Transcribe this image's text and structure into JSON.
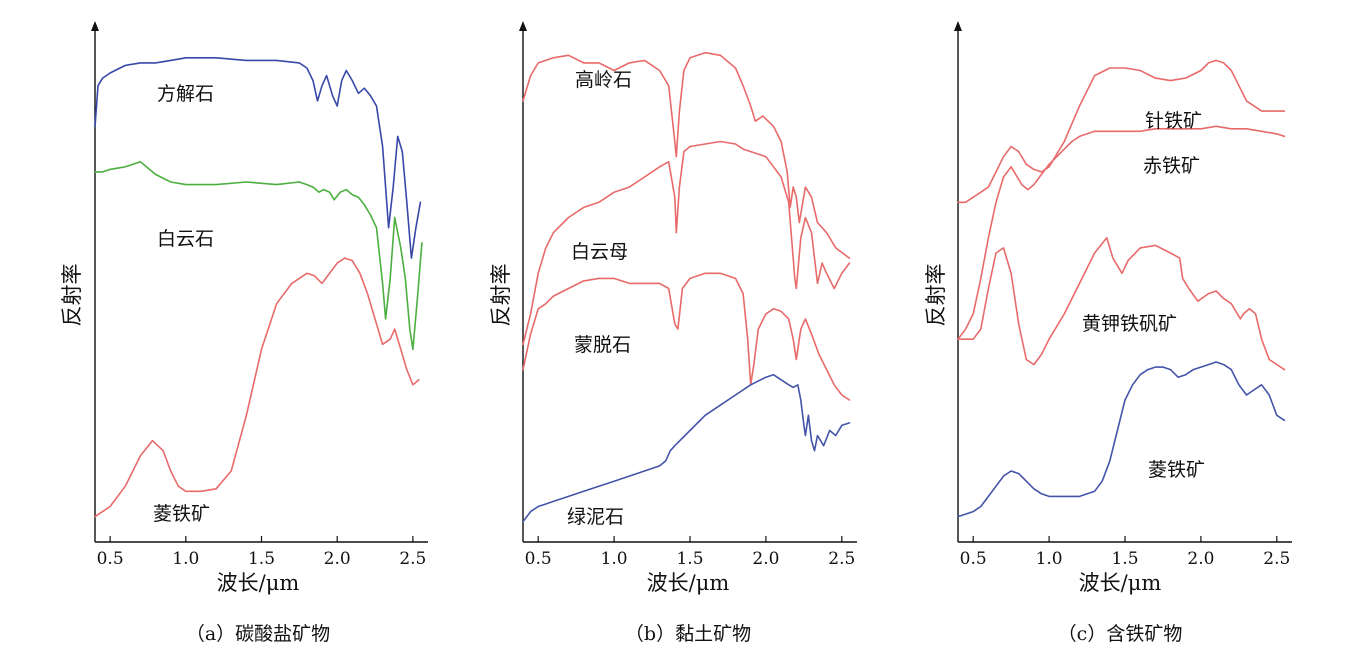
{
  "chart_data": [
    {
      "type": "line",
      "caption": "（a）碳酸盐矿物",
      "xlabel": "波长/μm",
      "ylabel": "反射率",
      "xlim": [
        0.4,
        2.6
      ],
      "xticks": [
        0.5,
        1.0,
        1.5,
        2.0,
        2.5
      ],
      "xtick_labels": [
        "0.5",
        "1.0",
        "1.5",
        "2.0",
        "2.5"
      ],
      "y_tick_labels": "none",
      "series": [
        {
          "name": "方解石",
          "color": "#3848a8",
          "x": [
            0.4,
            0.42,
            0.45,
            0.5,
            0.6,
            0.7,
            0.8,
            0.9,
            1.0,
            1.2,
            1.4,
            1.6,
            1.75,
            1.8,
            1.84,
            1.87,
            1.9,
            1.93,
            1.97,
            2.0,
            2.03,
            2.06,
            2.1,
            2.14,
            2.18,
            2.22,
            2.26,
            2.3,
            2.34,
            2.37,
            2.4,
            2.43,
            2.46,
            2.49,
            2.52,
            2.55
          ],
          "y": [
            0.82,
            0.9,
            0.915,
            0.925,
            0.94,
            0.945,
            0.945,
            0.95,
            0.955,
            0.955,
            0.95,
            0.95,
            0.945,
            0.935,
            0.91,
            0.87,
            0.9,
            0.92,
            0.88,
            0.86,
            0.91,
            0.93,
            0.91,
            0.885,
            0.895,
            0.88,
            0.86,
            0.78,
            0.62,
            0.7,
            0.8,
            0.77,
            0.67,
            0.56,
            0.62,
            0.67
          ]
        },
        {
          "name": "白云石",
          "color": "#4caf40",
          "x": [
            0.4,
            0.45,
            0.5,
            0.6,
            0.7,
            0.8,
            0.9,
            1.0,
            1.2,
            1.4,
            1.6,
            1.75,
            1.8,
            1.84,
            1.88,
            1.91,
            1.95,
            1.98,
            2.02,
            2.06,
            2.1,
            2.14,
            2.18,
            2.22,
            2.26,
            2.3,
            2.32,
            2.35,
            2.38,
            2.42,
            2.45,
            2.48,
            2.5,
            2.53,
            2.56
          ],
          "y": [
            0.73,
            0.73,
            0.735,
            0.74,
            0.75,
            0.725,
            0.71,
            0.705,
            0.705,
            0.71,
            0.705,
            0.71,
            0.705,
            0.7,
            0.69,
            0.695,
            0.69,
            0.675,
            0.69,
            0.695,
            0.685,
            0.68,
            0.665,
            0.645,
            0.62,
            0.51,
            0.44,
            0.52,
            0.64,
            0.58,
            0.52,
            0.42,
            0.38,
            0.48,
            0.59
          ]
        },
        {
          "name": "菱铁矿",
          "color": "#e86a6a",
          "x": [
            0.4,
            0.5,
            0.6,
            0.7,
            0.78,
            0.85,
            0.9,
            0.95,
            1.0,
            1.1,
            1.2,
            1.3,
            1.4,
            1.5,
            1.6,
            1.7,
            1.8,
            1.85,
            1.9,
            1.95,
            2.0,
            2.05,
            2.1,
            2.15,
            2.2,
            2.25,
            2.3,
            2.35,
            2.38,
            2.42,
            2.46,
            2.5,
            2.54
          ],
          "y": [
            0.05,
            0.07,
            0.11,
            0.17,
            0.2,
            0.18,
            0.14,
            0.11,
            0.1,
            0.1,
            0.105,
            0.14,
            0.25,
            0.38,
            0.47,
            0.51,
            0.53,
            0.525,
            0.51,
            0.53,
            0.55,
            0.56,
            0.555,
            0.53,
            0.49,
            0.44,
            0.39,
            0.4,
            0.42,
            0.38,
            0.34,
            0.31,
            0.32
          ]
        }
      ]
    },
    {
      "type": "line",
      "caption": "（b）黏土矿物",
      "xlabel": "波长/μm",
      "ylabel": "反射率",
      "xlim": [
        0.4,
        2.6
      ],
      "xticks": [
        0.5,
        1.0,
        1.5,
        2.0,
        2.5
      ],
      "xtick_labels": [
        "0.5",
        "1.0",
        "1.5",
        "2.0",
        "2.5"
      ],
      "y_tick_labels": "none",
      "series": [
        {
          "name": "高岭石",
          "color": "#e86a6a",
          "x": [
            0.4,
            0.45,
            0.5,
            0.55,
            0.6,
            0.7,
            0.8,
            0.9,
            1.0,
            1.1,
            1.2,
            1.3,
            1.36,
            1.4,
            1.41,
            1.43,
            1.46,
            1.5,
            1.6,
            1.7,
            1.8,
            1.85,
            1.9,
            1.93,
            1.98,
            2.05,
            2.1,
            2.14,
            2.16,
            2.18,
            2.2,
            2.22,
            2.26,
            2.3,
            2.34,
            2.4,
            2.46,
            2.55
          ],
          "y": [
            0.87,
            0.92,
            0.945,
            0.95,
            0.955,
            0.96,
            0.945,
            0.945,
            0.93,
            0.945,
            0.95,
            0.93,
            0.9,
            0.79,
            0.76,
            0.85,
            0.93,
            0.955,
            0.965,
            0.96,
            0.935,
            0.9,
            0.86,
            0.83,
            0.84,
            0.82,
            0.79,
            0.73,
            0.66,
            0.7,
            0.68,
            0.63,
            0.7,
            0.68,
            0.63,
            0.61,
            0.58,
            0.56
          ]
        },
        {
          "name": "白云母",
          "color": "#e86a6a",
          "x": [
            0.4,
            0.45,
            0.5,
            0.55,
            0.6,
            0.7,
            0.8,
            0.9,
            1.0,
            1.1,
            1.2,
            1.3,
            1.36,
            1.4,
            1.41,
            1.43,
            1.46,
            1.5,
            1.6,
            1.7,
            1.8,
            1.85,
            1.9,
            1.95,
            2.0,
            2.05,
            2.1,
            2.15,
            2.19,
            2.2,
            2.23,
            2.26,
            2.3,
            2.34,
            2.37,
            2.4,
            2.45,
            2.5,
            2.55
          ],
          "y": [
            0.39,
            0.45,
            0.53,
            0.58,
            0.61,
            0.64,
            0.66,
            0.67,
            0.69,
            0.7,
            0.72,
            0.74,
            0.75,
            0.68,
            0.61,
            0.7,
            0.77,
            0.78,
            0.785,
            0.79,
            0.785,
            0.775,
            0.77,
            0.765,
            0.76,
            0.74,
            0.72,
            0.67,
            0.52,
            0.5,
            0.6,
            0.64,
            0.61,
            0.51,
            0.55,
            0.53,
            0.5,
            0.53,
            0.55
          ]
        },
        {
          "name": "蒙脱石",
          "color": "#e86a6a",
          "x": [
            0.4,
            0.45,
            0.5,
            0.55,
            0.6,
            0.7,
            0.8,
            0.9,
            1.0,
            1.1,
            1.2,
            1.3,
            1.36,
            1.4,
            1.42,
            1.45,
            1.5,
            1.6,
            1.7,
            1.8,
            1.85,
            1.88,
            1.9,
            1.92,
            1.95,
            2.0,
            2.05,
            2.1,
            2.15,
            2.18,
            2.2,
            2.23,
            2.26,
            2.3,
            2.35,
            2.4,
            2.45,
            2.5,
            2.55
          ],
          "y": [
            0.34,
            0.41,
            0.46,
            0.47,
            0.485,
            0.5,
            0.515,
            0.52,
            0.52,
            0.51,
            0.51,
            0.51,
            0.5,
            0.43,
            0.42,
            0.5,
            0.52,
            0.53,
            0.53,
            0.52,
            0.49,
            0.4,
            0.31,
            0.35,
            0.42,
            0.45,
            0.46,
            0.455,
            0.44,
            0.4,
            0.36,
            0.42,
            0.44,
            0.41,
            0.37,
            0.34,
            0.31,
            0.29,
            0.28
          ]
        },
        {
          "name": "绿泥石",
          "color": "#4454a8",
          "x": [
            0.4,
            0.45,
            0.5,
            0.55,
            0.6,
            0.7,
            0.8,
            0.9,
            1.0,
            1.1,
            1.2,
            1.3,
            1.34,
            1.37,
            1.4,
            1.5,
            1.6,
            1.7,
            1.8,
            1.9,
            2.0,
            2.05,
            2.1,
            2.15,
            2.18,
            2.21,
            2.23,
            2.25,
            2.26,
            2.28,
            2.3,
            2.32,
            2.34,
            2.38,
            2.42,
            2.46,
            2.5,
            2.55
          ],
          "y": [
            0.04,
            0.06,
            0.07,
            0.075,
            0.08,
            0.09,
            0.1,
            0.11,
            0.12,
            0.13,
            0.14,
            0.15,
            0.16,
            0.18,
            0.19,
            0.22,
            0.25,
            0.27,
            0.29,
            0.31,
            0.325,
            0.33,
            0.32,
            0.31,
            0.305,
            0.31,
            0.28,
            0.23,
            0.21,
            0.25,
            0.2,
            0.18,
            0.21,
            0.19,
            0.22,
            0.21,
            0.23,
            0.235
          ]
        }
      ]
    },
    {
      "type": "line",
      "caption": "（c）含铁矿物",
      "xlabel": "波长/μm",
      "ylabel": "反射率",
      "xlim": [
        0.4,
        2.6
      ],
      "xticks": [
        0.5,
        1.0,
        1.5,
        2.0,
        2.5
      ],
      "xtick_labels": [
        "0.5",
        "1.0",
        "1.5",
        "2.0",
        "2.5"
      ],
      "y_tick_labels": "none",
      "series": [
        {
          "name": "针铁矿",
          "color": "#e86a6a",
          "x": [
            0.4,
            0.45,
            0.5,
            0.55,
            0.6,
            0.65,
            0.7,
            0.75,
            0.8,
            0.85,
            0.9,
            0.95,
            1.0,
            1.1,
            1.2,
            1.3,
            1.4,
            1.5,
            1.6,
            1.7,
            1.8,
            1.9,
            2.0,
            2.05,
            2.1,
            2.15,
            2.2,
            2.25,
            2.3,
            2.4,
            2.5,
            2.55
          ],
          "y": [
            0.67,
            0.67,
            0.68,
            0.69,
            0.7,
            0.73,
            0.76,
            0.78,
            0.77,
            0.745,
            0.735,
            0.73,
            0.74,
            0.79,
            0.86,
            0.92,
            0.935,
            0.935,
            0.93,
            0.915,
            0.91,
            0.915,
            0.93,
            0.945,
            0.95,
            0.945,
            0.93,
            0.9,
            0.87,
            0.85,
            0.85,
            0.85
          ]
        },
        {
          "name": "赤铁矿",
          "color": "#e86a6a",
          "x": [
            0.4,
            0.45,
            0.5,
            0.55,
            0.6,
            0.65,
            0.7,
            0.75,
            0.78,
            0.82,
            0.86,
            0.9,
            0.95,
            1.0,
            1.05,
            1.1,
            1.15,
            1.2,
            1.3,
            1.4,
            1.5,
            1.6,
            1.7,
            1.8,
            1.9,
            2.0,
            2.1,
            2.2,
            2.3,
            2.4,
            2.5,
            2.55
          ],
          "y": [
            0.4,
            0.42,
            0.45,
            0.52,
            0.6,
            0.67,
            0.72,
            0.74,
            0.725,
            0.705,
            0.695,
            0.705,
            0.725,
            0.745,
            0.76,
            0.775,
            0.79,
            0.8,
            0.81,
            0.81,
            0.81,
            0.81,
            0.815,
            0.815,
            0.815,
            0.815,
            0.82,
            0.815,
            0.815,
            0.81,
            0.805,
            0.8
          ]
        },
        {
          "name": "黄钾铁矾矿",
          "color": "#e86a6a",
          "x": [
            0.4,
            0.45,
            0.5,
            0.55,
            0.6,
            0.65,
            0.7,
            0.75,
            0.8,
            0.85,
            0.9,
            0.95,
            1.0,
            1.1,
            1.2,
            1.3,
            1.38,
            1.42,
            1.48,
            1.52,
            1.6,
            1.7,
            1.8,
            1.86,
            1.88,
            1.92,
            1.98,
            2.05,
            2.1,
            2.15,
            2.2,
            2.26,
            2.28,
            2.32,
            2.36,
            2.4,
            2.45,
            2.55
          ],
          "y": [
            0.4,
            0.4,
            0.4,
            0.42,
            0.5,
            0.57,
            0.58,
            0.53,
            0.43,
            0.36,
            0.35,
            0.37,
            0.4,
            0.45,
            0.51,
            0.57,
            0.6,
            0.56,
            0.53,
            0.555,
            0.58,
            0.585,
            0.57,
            0.56,
            0.52,
            0.5,
            0.475,
            0.49,
            0.495,
            0.48,
            0.47,
            0.44,
            0.45,
            0.46,
            0.45,
            0.4,
            0.36,
            0.34
          ]
        },
        {
          "name": "菱铁矿",
          "color": "#4454a8",
          "x": [
            0.4,
            0.45,
            0.5,
            0.55,
            0.6,
            0.65,
            0.7,
            0.75,
            0.8,
            0.85,
            0.9,
            0.95,
            1.0,
            1.1,
            1.2,
            1.3,
            1.35,
            1.4,
            1.45,
            1.5,
            1.55,
            1.6,
            1.65,
            1.7,
            1.75,
            1.8,
            1.85,
            1.9,
            1.95,
            2.0,
            2.05,
            2.1,
            2.15,
            2.2,
            2.25,
            2.3,
            2.35,
            2.4,
            2.45,
            2.5,
            2.55
          ],
          "y": [
            0.05,
            0.055,
            0.06,
            0.07,
            0.09,
            0.11,
            0.13,
            0.14,
            0.135,
            0.12,
            0.105,
            0.095,
            0.09,
            0.09,
            0.09,
            0.1,
            0.12,
            0.16,
            0.22,
            0.28,
            0.31,
            0.33,
            0.34,
            0.345,
            0.345,
            0.34,
            0.325,
            0.33,
            0.34,
            0.345,
            0.35,
            0.355,
            0.35,
            0.34,
            0.31,
            0.29,
            0.3,
            0.31,
            0.29,
            0.25,
            0.24
          ]
        }
      ]
    }
  ]
}
